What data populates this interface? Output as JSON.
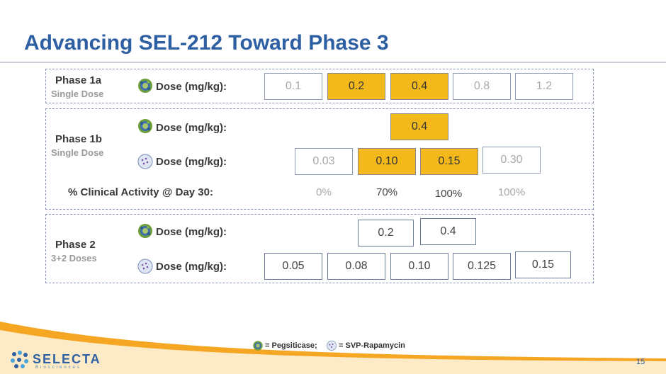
{
  "title": "Advancing SEL-212 Toward Phase 3",
  "dose_label": "Dose (mg/kg):",
  "phase1a": {
    "name": "Phase 1a",
    "subtitle": "Single Dose",
    "pegsiticase_doses": [
      {
        "value": "0.1",
        "highlighted": false
      },
      {
        "value": "0.2",
        "highlighted": true
      },
      {
        "value": "0.4",
        "highlighted": true
      },
      {
        "value": "0.8",
        "highlighted": false
      },
      {
        "value": "1.2",
        "highlighted": false
      }
    ]
  },
  "phase1b": {
    "name": "Phase 1b",
    "subtitle": "Single Dose",
    "pegsiticase_doses": [
      {
        "value": "0.4",
        "highlighted": true
      }
    ],
    "svp_doses": [
      {
        "value": "0.03",
        "highlighted": false
      },
      {
        "value": "0.10",
        "highlighted": true
      },
      {
        "value": "0.15",
        "highlighted": true
      },
      {
        "value": "0.30",
        "highlighted": false
      }
    ],
    "activity_label": "% Clinical Activity @ Day 30:",
    "activity_values": [
      "0%",
      "70%",
      "100%",
      "100%"
    ]
  },
  "phase2": {
    "name": "Phase 2",
    "subtitle": "3+2 Doses",
    "pegsiticase_doses": [
      {
        "value": "0.2",
        "highlighted": false
      },
      {
        "value": "0.4",
        "highlighted": false
      }
    ],
    "svp_doses": [
      {
        "value": "0.05",
        "highlighted": false
      },
      {
        "value": "0.08",
        "highlighted": false
      },
      {
        "value": "0.10",
        "highlighted": false
      },
      {
        "value": "0.125",
        "highlighted": false
      },
      {
        "value": "0.15",
        "highlighted": false
      }
    ]
  },
  "legend": {
    "pegsiticase": "= Pegsiticase;",
    "svp": "= SVP-Rapamycin"
  },
  "logo": {
    "name": "SELECTA",
    "tagline": "Biosciences"
  },
  "page_number": "15",
  "colors": {
    "title": "#2e5fa3",
    "highlight": "#f3b91b",
    "swoosh": "#f5a623",
    "frame": "#8794b5"
  },
  "icons": {
    "pegsiticase": "pegsiticase-molecule-icon",
    "svp": "svp-nanoparticle-icon"
  }
}
